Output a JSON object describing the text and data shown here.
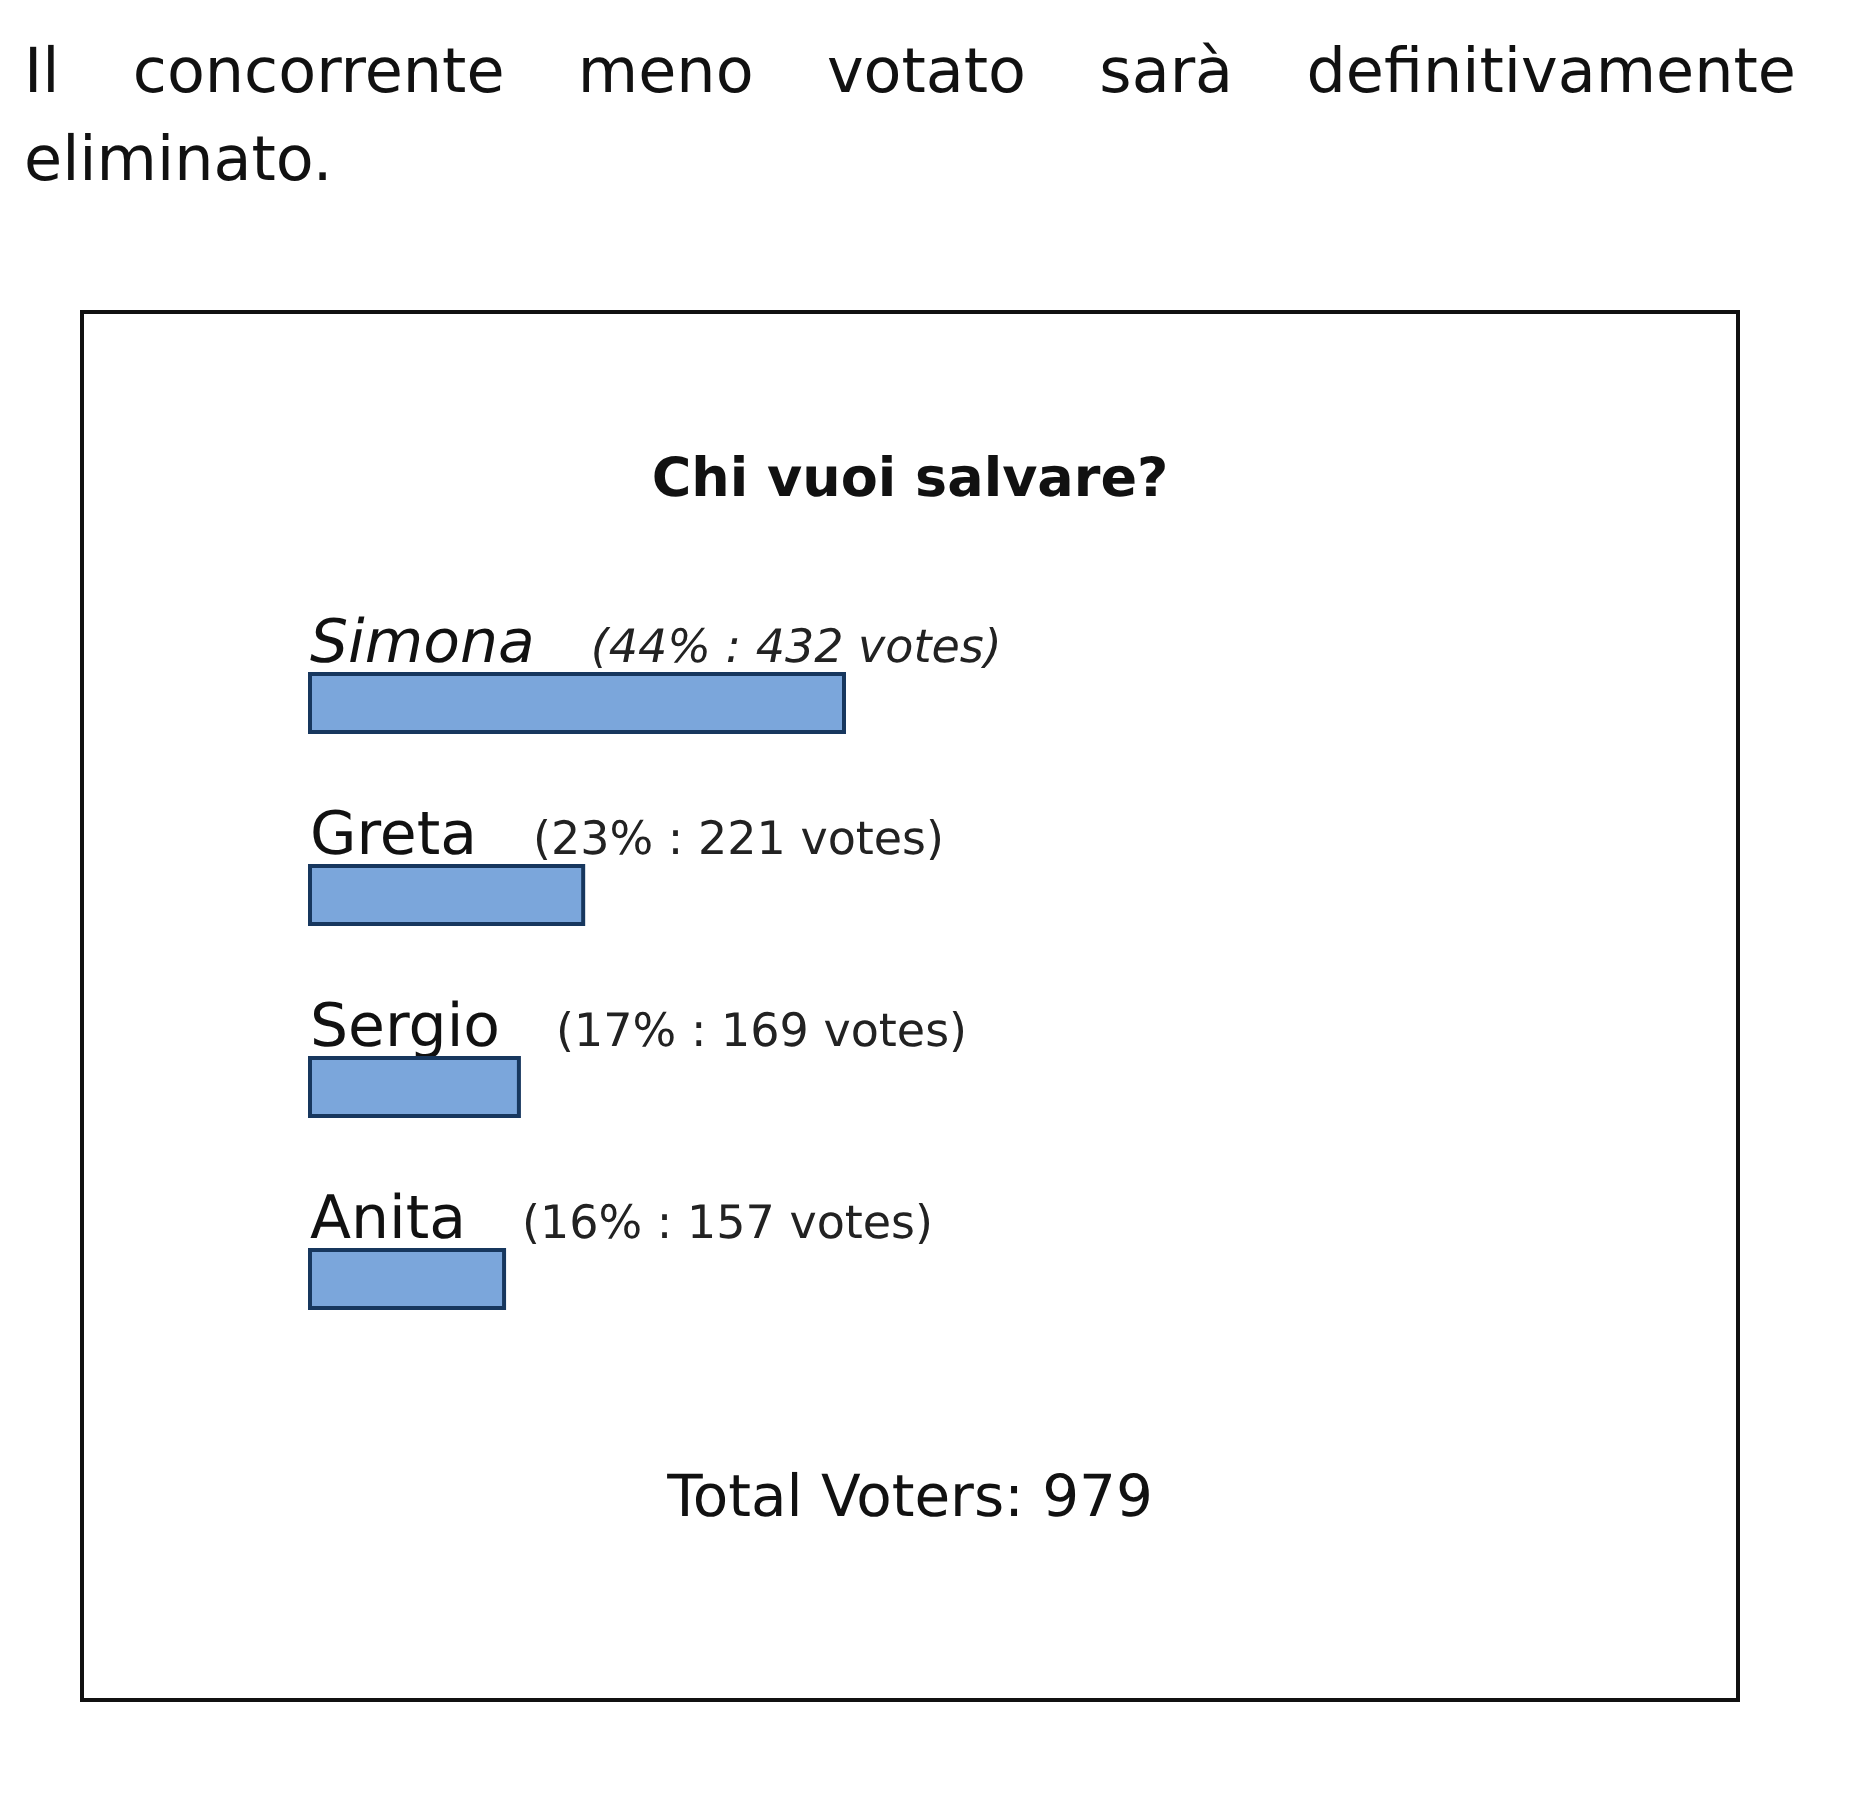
{
  "chart_data": {
    "type": "bar",
    "orientation": "horizontal",
    "title": "Chi vuoi salvare?",
    "categories": [
      "Simona",
      "Greta",
      "Sergio",
      "Anita"
    ],
    "values": [
      432,
      221,
      169,
      157
    ],
    "value_labels": [
      "(44% : 432 votes)",
      "(23% : 221 votes)",
      "(17% : 169 votes)",
      "(16% : 157 votes)"
    ],
    "color": "#7ba6db",
    "annotations": [
      "Il concorrente meno votato sarà definitivamente eliminato.",
      "Total Voters: 979"
    ]
  }
}
